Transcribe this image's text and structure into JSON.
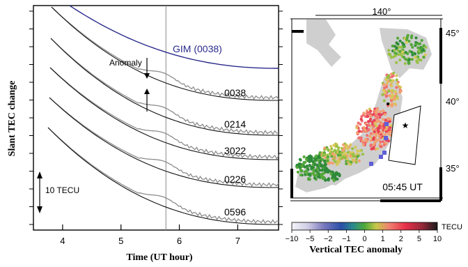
{
  "chart_data": [
    {
      "type": "line",
      "xlabel": "Time (UT hour)",
      "ylabel": "Slant TEC change",
      "xlim": [
        3.5,
        7.7
      ],
      "x_ticks": [
        "4",
        "5",
        "6",
        "7"
      ],
      "vertical_line_x": 5.77,
      "reference_curve_label": "GIM (0038)",
      "scale_bar_label": "10 TECU",
      "annotation": "Anomaly",
      "series": [
        {
          "name": "0038"
        },
        {
          "name": "0214"
        },
        {
          "name": "3022"
        },
        {
          "name": "0226"
        },
        {
          "name": "0596"
        }
      ],
      "colors": {
        "gim": "#2a2a8c",
        "model": "#111111",
        "observed": "#8c8c8c"
      }
    },
    {
      "type": "heatmap",
      "map_time": "05:45 UT",
      "lon_label": "140°",
      "lat_labels": [
        "45°",
        "40°",
        "35°"
      ],
      "colorbar": {
        "label": "Vertical TEC anomaly",
        "unit": "TECU",
        "ticks": [
          "−10",
          "−5",
          "−2",
          "−1",
          "0",
          "1",
          "2",
          "5",
          "10"
        ]
      }
    }
  ]
}
